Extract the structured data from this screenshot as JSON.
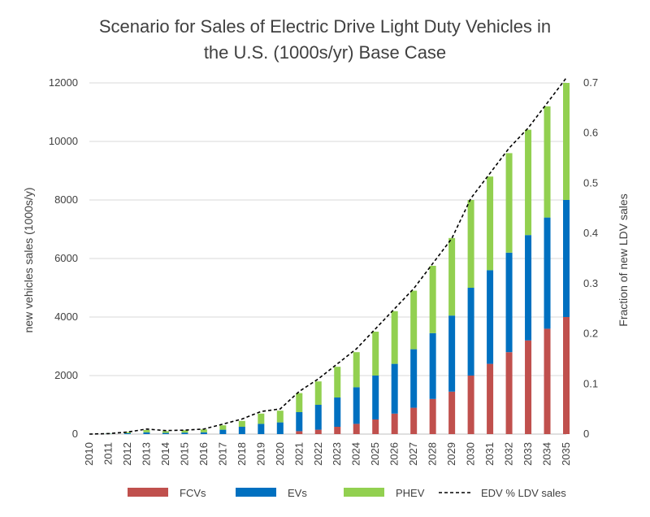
{
  "chart_data": {
    "type": "bar",
    "stacked": true,
    "title_line1": "Scenario for Sales of Electric Drive Light Duty Vehicles in",
    "title_line2": "the U.S. (1000s/yr) Base Case",
    "ylabel": "new vehicles sales (1000s/y)",
    "y2label": "Fraction of new LDV sales",
    "ylim": [
      0,
      12000
    ],
    "y2lim": [
      0,
      0.7
    ],
    "yticks": [
      "0",
      "2000",
      "4000",
      "6000",
      "8000",
      "10000",
      "12000"
    ],
    "y2ticks": [
      "0",
      "0.1",
      "0.2",
      "0.3",
      "0.4",
      "0.5",
      "0.6",
      "0.7"
    ],
    "categories": [
      "2010",
      "2011",
      "2012",
      "2013",
      "2014",
      "2015",
      "2016",
      "2017",
      "2018",
      "2019",
      "2020",
      "2021",
      "2022",
      "2023",
      "2024",
      "2025",
      "2026",
      "2027",
      "2028",
      "2029",
      "2030",
      "2031",
      "2032",
      "2033",
      "2034",
      "2035"
    ],
    "series": [
      {
        "name": "FCVs",
        "color": "#c0504d",
        "values": [
          0,
          0,
          0,
          0,
          0,
          0,
          0,
          0,
          0,
          0,
          0,
          100,
          150,
          250,
          350,
          500,
          700,
          900,
          1200,
          1450,
          2000,
          2400,
          2800,
          3200,
          3600,
          4000
        ]
      },
      {
        "name": "EVs",
        "color": "#0070c0",
        "values": [
          0,
          10,
          30,
          60,
          40,
          50,
          60,
          150,
          250,
          350,
          400,
          650,
          850,
          1000,
          1250,
          1500,
          1700,
          2000,
          2250,
          2600,
          3000,
          3200,
          3400,
          3600,
          3800,
          4000
        ]
      },
      {
        "name": "PHEV",
        "color": "#92d050",
        "values": [
          0,
          10,
          40,
          80,
          60,
          80,
          100,
          150,
          200,
          350,
          400,
          650,
          800,
          1050,
          1200,
          1500,
          1800,
          2000,
          2300,
          2650,
          3000,
          3200,
          3400,
          3600,
          3800,
          4000
        ]
      }
    ],
    "line_series": {
      "name": "EDV % LDV sales",
      "style": "dashed",
      "color": "#000000",
      "values": [
        0,
        0.001,
        0.004,
        0.01,
        0.007,
        0.008,
        0.01,
        0.02,
        0.03,
        0.045,
        0.05,
        0.085,
        0.11,
        0.14,
        0.17,
        0.21,
        0.25,
        0.29,
        0.34,
        0.39,
        0.47,
        0.52,
        0.57,
        0.61,
        0.66,
        0.71
      ]
    },
    "grid": true,
    "legend_position": "bottom"
  }
}
